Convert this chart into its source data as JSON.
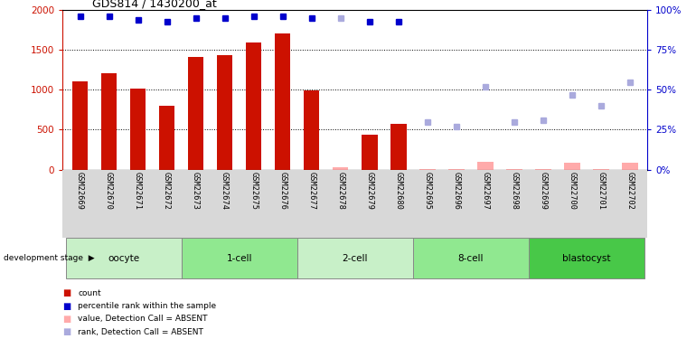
{
  "title": "GDS814 / 1430200_at",
  "samples": [
    "GSM22669",
    "GSM22670",
    "GSM22671",
    "GSM22672",
    "GSM22673",
    "GSM22674",
    "GSM22675",
    "GSM22676",
    "GSM22677",
    "GSM22678",
    "GSM22679",
    "GSM22680",
    "GSM22695",
    "GSM22696",
    "GSM22697",
    "GSM22698",
    "GSM22699",
    "GSM22700",
    "GSM22701",
    "GSM22702"
  ],
  "bar_values": [
    1110,
    1210,
    1020,
    800,
    1410,
    1430,
    1600,
    1710,
    990,
    null,
    440,
    570,
    null,
    null,
    null,
    null,
    null,
    null,
    null,
    null
  ],
  "bar_absent_values": [
    null,
    null,
    null,
    null,
    null,
    null,
    null,
    null,
    null,
    30,
    null,
    null,
    5,
    5,
    100,
    5,
    5,
    90,
    5,
    90
  ],
  "rank_present": [
    96,
    96,
    94,
    93,
    95,
    95,
    96,
    96,
    95,
    null,
    93,
    93,
    null,
    null,
    null,
    null,
    null,
    null,
    null,
    null
  ],
  "rank_absent": [
    null,
    null,
    null,
    null,
    null,
    null,
    null,
    null,
    null,
    95,
    null,
    null,
    30,
    27,
    52,
    30,
    31,
    47,
    40,
    55
  ],
  "ylim_left": [
    0,
    2000
  ],
  "ylim_right": [
    0,
    100
  ],
  "yticks_left": [
    0,
    500,
    1000,
    1500,
    2000
  ],
  "yticks_right": [
    0,
    25,
    50,
    75,
    100
  ],
  "stages": [
    {
      "name": "oocyte",
      "start": 0,
      "end": 3,
      "color": "#c8f0c8"
    },
    {
      "name": "1-cell",
      "start": 4,
      "end": 7,
      "color": "#90e890"
    },
    {
      "name": "2-cell",
      "start": 8,
      "end": 11,
      "color": "#c8f0c8"
    },
    {
      "name": "8-cell",
      "start": 12,
      "end": 15,
      "color": "#90e890"
    },
    {
      "name": "blastocyst",
      "start": 16,
      "end": 19,
      "color": "#48c848"
    }
  ],
  "bar_color_present": "#cc1100",
  "bar_color_absent": "#ffaaaa",
  "rank_color_present": "#0000cc",
  "rank_color_absent": "#aaaadd",
  "left_axis_color": "#cc1100",
  "right_axis_color": "#0000cc",
  "bg_color": "#ffffff",
  "legend_items": [
    {
      "color": "#cc1100",
      "label": "count"
    },
    {
      "color": "#0000cc",
      "label": "percentile rank within the sample"
    },
    {
      "color": "#ffaaaa",
      "label": "value, Detection Call = ABSENT"
    },
    {
      "color": "#aaaadd",
      "label": "rank, Detection Call = ABSENT"
    }
  ]
}
